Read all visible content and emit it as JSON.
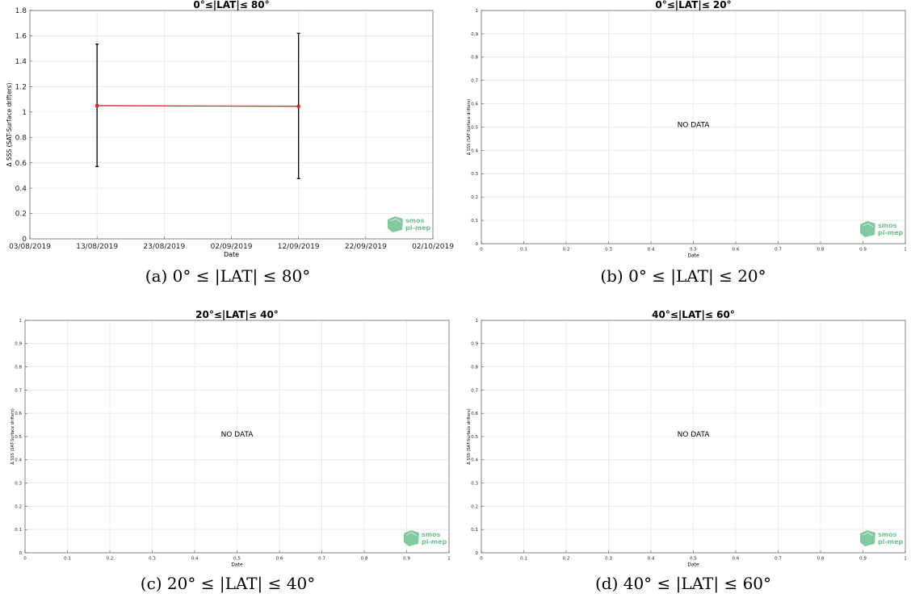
{
  "colors": {
    "series": "#d62728",
    "errorbar": "#000000",
    "grid": "#e6e6e6",
    "axis": "#4d4d4d",
    "logo": "#6dbf8f"
  },
  "logo": {
    "line1": "smos",
    "line2": "pi-mep"
  },
  "chart_data": [
    {
      "type": "line",
      "title": "0°≤|LAT|≤ 80°",
      "caption": "(a) 0° ≤ |LAT| ≤ 80°",
      "xlabel": "Date",
      "ylabel": "Δ SSS (SAT-Surface drifters)",
      "xticks": [
        "03/08/2019",
        "13/08/2019",
        "23/08/2019",
        "02/09/2019",
        "12/09/2019",
        "22/09/2019",
        "02/10/2019"
      ],
      "xlim": [
        "2019-08-03",
        "2019-10-02"
      ],
      "yticks": [
        "0",
        "0.2",
        "0.4",
        "0.6",
        "0.8",
        "1",
        "1.2",
        "1.4",
        "1.6",
        "1.8"
      ],
      "ylim": [
        0,
        1.8
      ],
      "grid": true,
      "series": [
        {
          "x": [
            "2019-08-13",
            "2019-09-12"
          ],
          "y": [
            1.05,
            1.045
          ],
          "error_low": [
            0.57,
            0.475
          ],
          "error_high": [
            1.535,
            1.62
          ]
        }
      ],
      "no_data": false
    },
    {
      "type": "line",
      "title": "0°≤|LAT|≤ 20°",
      "caption": "(b) 0° ≤ |LAT| ≤ 20°",
      "xlabel": "Date",
      "ylabel": "Δ SSS (SAT-Surface drifters)",
      "xticks": [
        "0",
        "0.1",
        "0.2",
        "0.3",
        "0.4",
        "0.5",
        "0.6",
        "0.7",
        "0.8",
        "0.9",
        "1"
      ],
      "xlim": [
        0,
        1
      ],
      "yticks": [
        "0",
        "0.1",
        "0.2",
        "0.3",
        "0.4",
        "0.5",
        "0.6",
        "0.7",
        "0.8",
        "0.9",
        "1"
      ],
      "ylim": [
        0,
        1
      ],
      "grid": true,
      "series": [],
      "no_data": true,
      "annotation": "NO DATA"
    },
    {
      "type": "line",
      "title": "20°≤|LAT|≤ 40°",
      "caption": "(c) 20° ≤ |LAT| ≤ 40°",
      "xlabel": "Date",
      "ylabel": "Δ SSS (SAT-Surface drifters)",
      "xticks": [
        "0",
        "0.1",
        "0.2",
        "0.3",
        "0.4",
        "0.5",
        "0.6",
        "0.7",
        "0.8",
        "0.9",
        "1"
      ],
      "xlim": [
        0,
        1
      ],
      "yticks": [
        "0",
        "0.1",
        "0.2",
        "0.3",
        "0.4",
        "0.5",
        "0.6",
        "0.7",
        "0.8",
        "0.9",
        "1"
      ],
      "ylim": [
        0,
        1
      ],
      "grid": true,
      "series": [],
      "no_data": true,
      "annotation": "NO DATA"
    },
    {
      "type": "line",
      "title": "40°≤|LAT|≤ 60°",
      "caption": "(d) 40° ≤ |LAT| ≤ 60°",
      "xlabel": "Date",
      "ylabel": "Δ SSS (SAT-Surface drifters)",
      "xticks": [
        "0",
        "0.1",
        "0.2",
        "0.3",
        "0.4",
        "0.5",
        "0.6",
        "0.7",
        "0.8",
        "0.9",
        "1"
      ],
      "xlim": [
        0,
        1
      ],
      "yticks": [
        "0",
        "0.1",
        "0.2",
        "0.3",
        "0.4",
        "0.5",
        "0.6",
        "0.7",
        "0.8",
        "0.9",
        "1"
      ],
      "ylim": [
        0,
        1
      ],
      "grid": true,
      "series": [],
      "no_data": true,
      "annotation": "NO DATA"
    }
  ]
}
